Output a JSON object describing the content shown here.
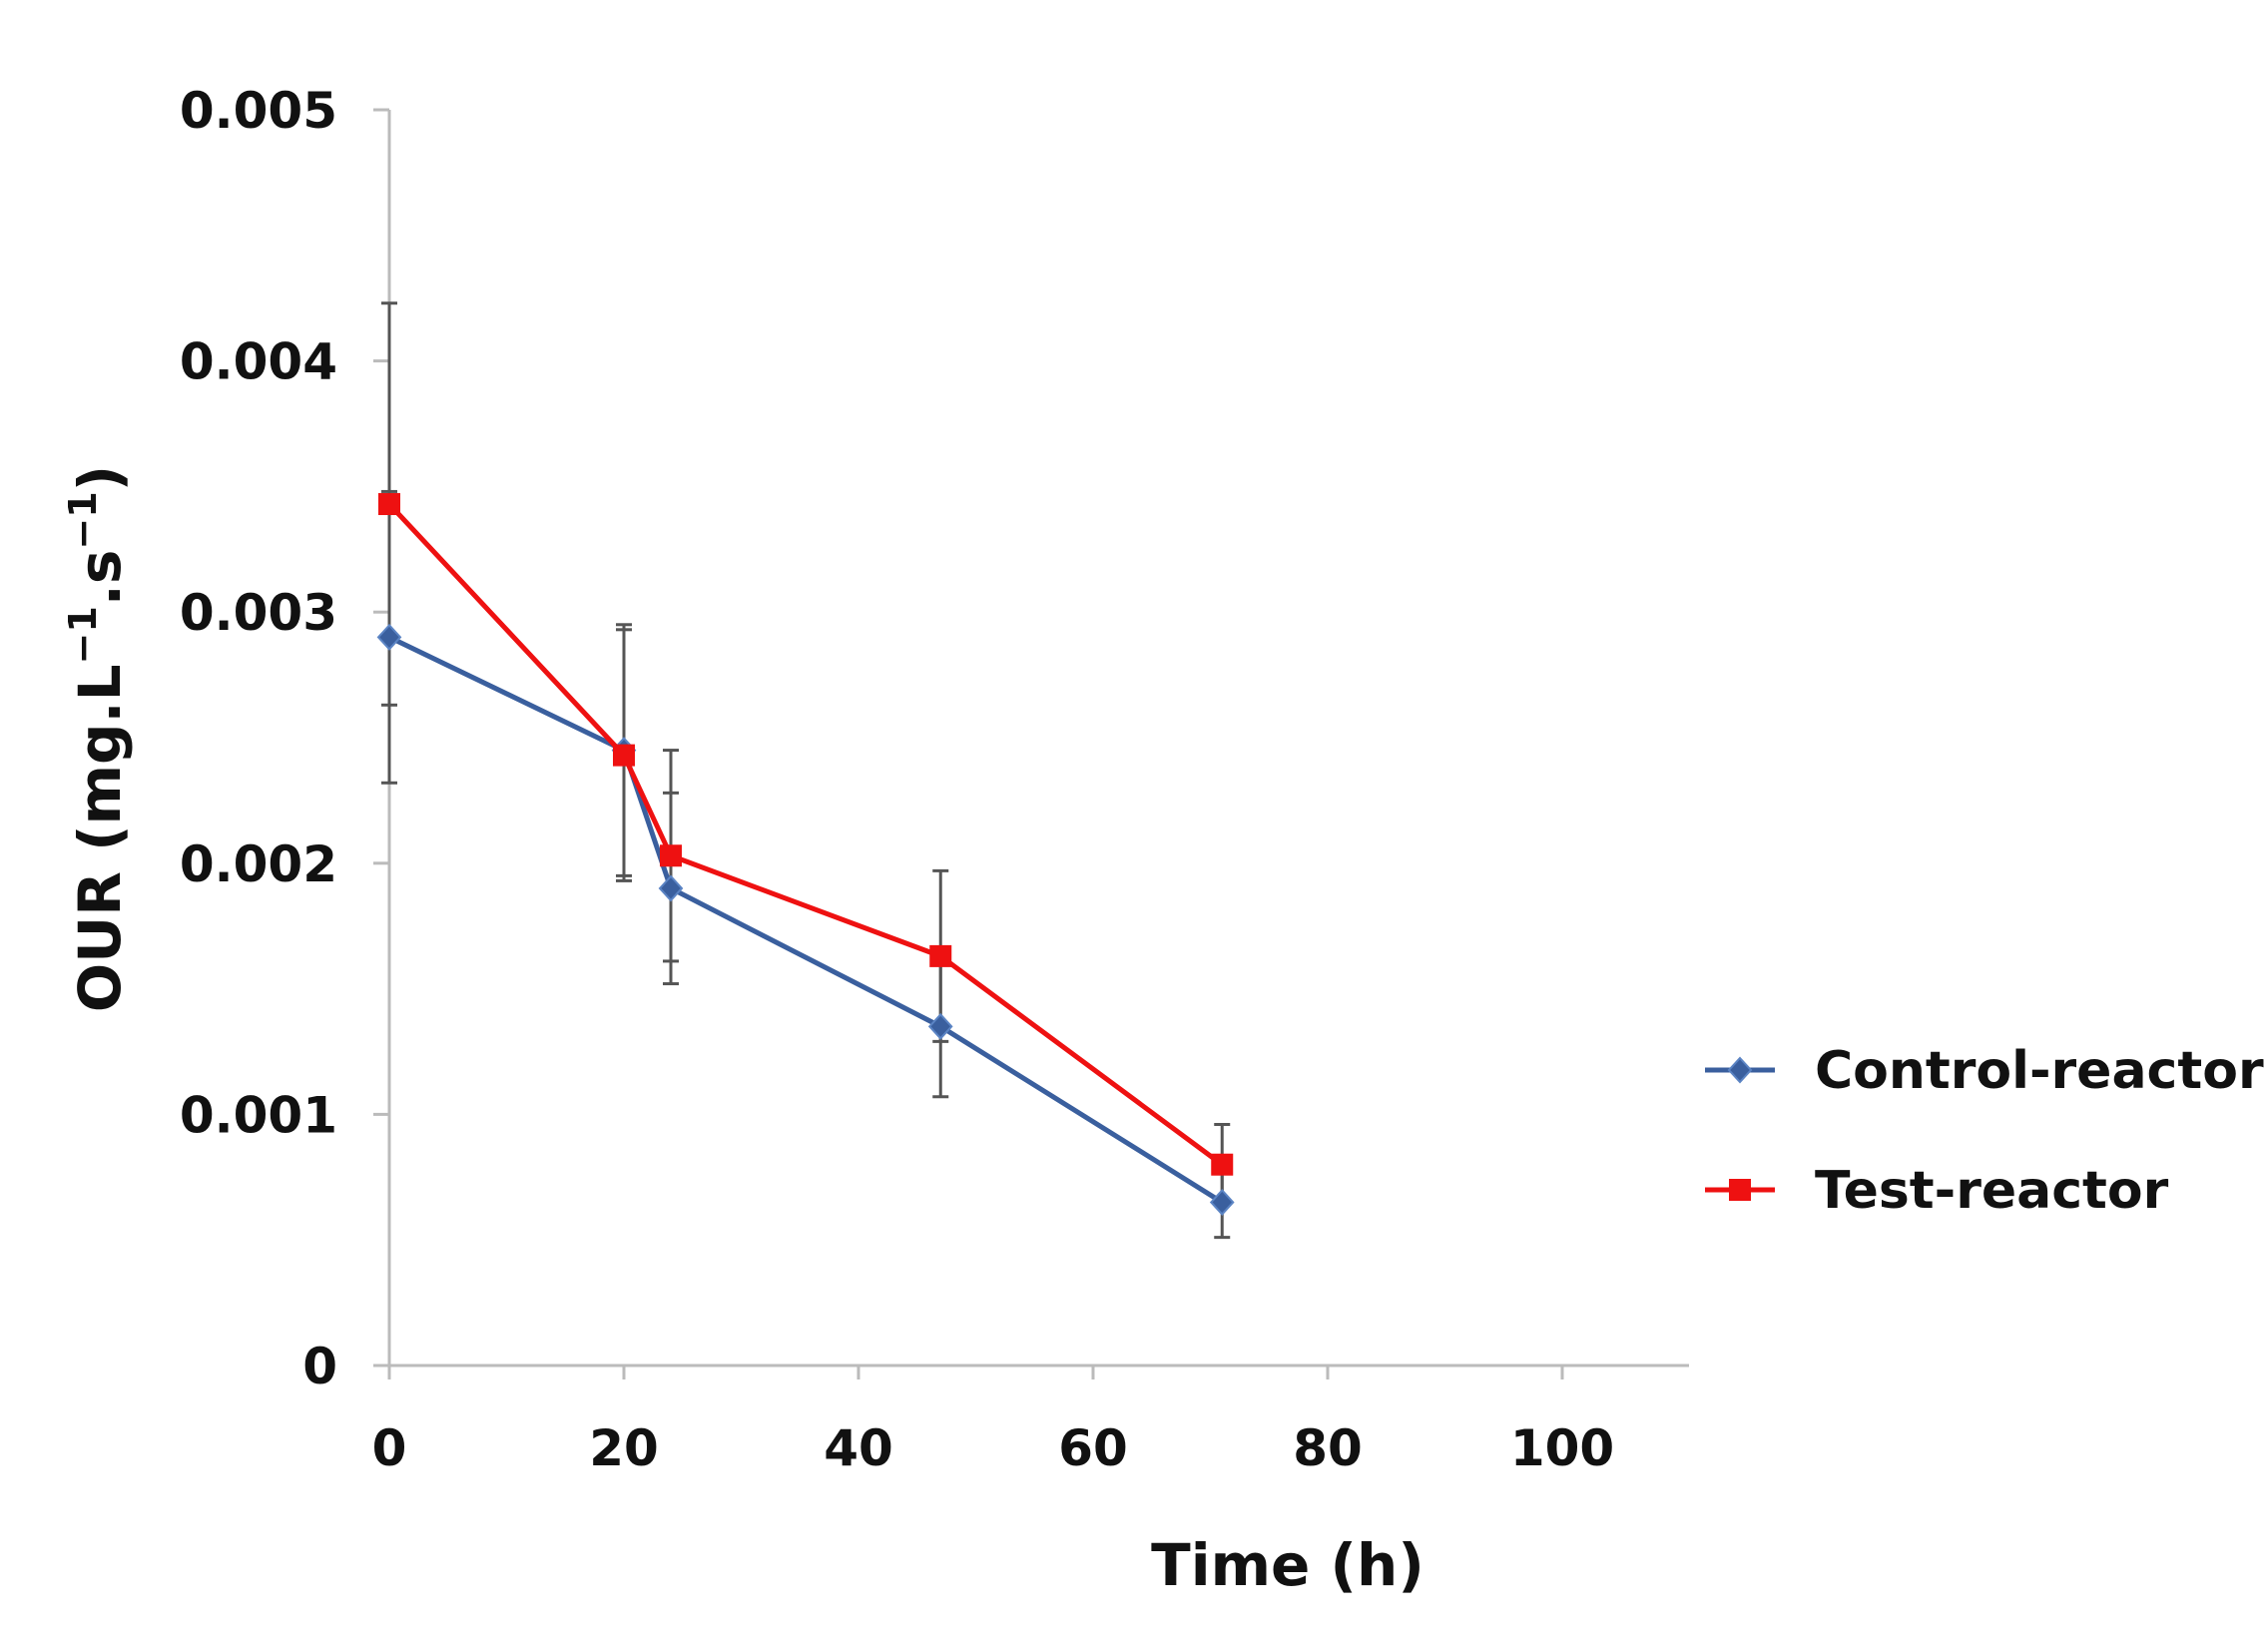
{
  "chart_data": {
    "type": "line",
    "title": "",
    "xlabel": "Time (h)",
    "ylabel": "OUR (mg.L",
    "ylabel_unit_1": "−1",
    "ylabel_mid": ".s",
    "ylabel_unit_2": "−1",
    "ylabel_end": ")",
    "xlim": [
      0,
      110
    ],
    "ylim": [
      0,
      0.005
    ],
    "x_ticks": [
      0,
      20,
      40,
      60,
      80,
      100
    ],
    "x_tick_labels": [
      "0",
      "20",
      "40",
      "60",
      "80",
      "100"
    ],
    "y_ticks": [
      0,
      0.001,
      0.002,
      0.003,
      0.004,
      0.005
    ],
    "y_tick_labels": [
      "0",
      "0.001",
      "0.002",
      "0.003",
      "0.004",
      "0.005"
    ],
    "grid": false,
    "legend_position": "right",
    "series": [
      {
        "name": "Control-reactor",
        "color": "#3a5f9e",
        "marker": "diamond",
        "x": [
          0,
          20,
          24,
          47,
          71
        ],
        "values": [
          0.0029,
          0.00245,
          0.0019,
          0.00135,
          0.00065
        ],
        "error": [
          0.00058,
          0.0005,
          0.00038,
          0.00028,
          0.00014
        ]
      },
      {
        "name": "Test-reactor",
        "color": "#ee1111",
        "marker": "square",
        "x": [
          0,
          20,
          24,
          47,
          71
        ],
        "values": [
          0.00343,
          0.00243,
          0.00203,
          0.00163,
          0.0008
        ],
        "error": [
          0.0008,
          0.0005,
          0.00042,
          0.00034,
          0.00016
        ]
      }
    ]
  }
}
